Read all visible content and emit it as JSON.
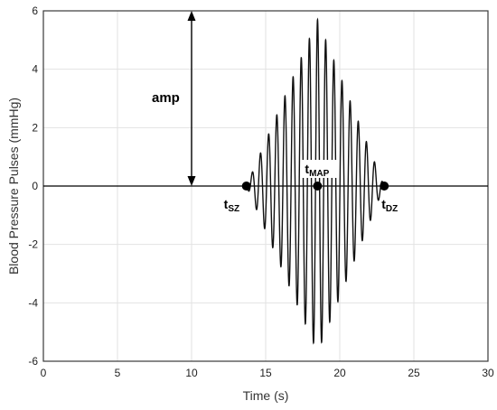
{
  "chart_data": {
    "type": "line",
    "xlabel": "Time (s)",
    "ylabel": "Blood Pressure Pulses (mmHg)",
    "xlim": [
      0,
      30
    ],
    "ylim": [
      -6,
      6
    ],
    "xticks": [
      0,
      5,
      10,
      15,
      20,
      25,
      30
    ],
    "yticks": [
      -6,
      -4,
      -2,
      0,
      2,
      4,
      6
    ],
    "grid": true,
    "signal": {
      "description": "oscillometric pulses: sinusoid with triangular envelope",
      "t_start": 13.7,
      "t_peak": 18.5,
      "t_end": 23.0,
      "peak_amplitude": 5.7,
      "pulse_period_s": 0.55
    },
    "markers": [
      {
        "label": "t",
        "sub": "SZ",
        "x": 13.7,
        "y": 0
      },
      {
        "label": "t",
        "sub": "MAP",
        "x": 18.5,
        "y": 0
      },
      {
        "label": "t",
        "sub": "DZ",
        "x": 23.0,
        "y": 0
      }
    ],
    "amp_arrow": {
      "label": "amp",
      "x": 10,
      "y_from": 0,
      "y_to": 6
    }
  }
}
